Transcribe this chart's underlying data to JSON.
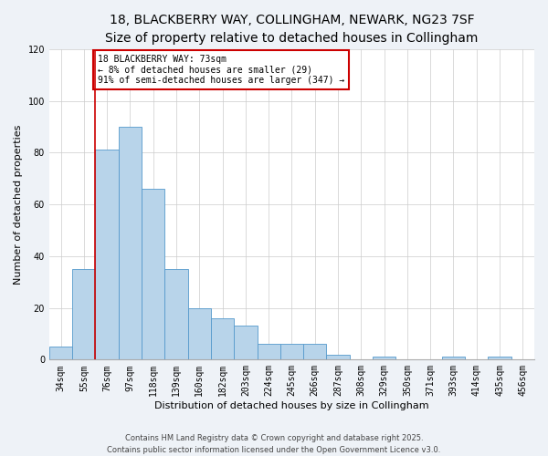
{
  "title": "18, BLACKBERRY WAY, COLLINGHAM, NEWARK, NG23 7SF",
  "subtitle": "Size of property relative to detached houses in Collingham",
  "xlabel": "Distribution of detached houses by size in Collingham",
  "ylabel": "Number of detached properties",
  "bar_labels": [
    "34sqm",
    "55sqm",
    "76sqm",
    "97sqm",
    "118sqm",
    "139sqm",
    "160sqm",
    "182sqm",
    "203sqm",
    "224sqm",
    "245sqm",
    "266sqm",
    "287sqm",
    "308sqm",
    "329sqm",
    "350sqm",
    "371sqm",
    "393sqm",
    "414sqm",
    "435sqm",
    "456sqm"
  ],
  "bar_values": [
    5,
    35,
    81,
    90,
    66,
    35,
    20,
    16,
    13,
    6,
    6,
    6,
    2,
    0,
    1,
    0,
    0,
    1,
    0,
    1,
    0
  ],
  "bar_color": "#b8d4ea",
  "bar_edge_color": "#5599cc",
  "vline_x": 1.5,
  "vline_color": "#cc0000",
  "annotation_title": "18 BLACKBERRY WAY: 73sqm",
  "annotation_line1": "← 8% of detached houses are smaller (29)",
  "annotation_line2": "91% of semi-detached houses are larger (347) →",
  "annotation_box_color": "#ffffff",
  "annotation_box_edge": "#cc0000",
  "ylim": [
    0,
    120
  ],
  "yticks": [
    0,
    20,
    40,
    60,
    80,
    100,
    120
  ],
  "footer1": "Contains HM Land Registry data © Crown copyright and database right 2025.",
  "footer2": "Contains public sector information licensed under the Open Government Licence v3.0.",
  "bg_color": "#eef2f7",
  "plot_bg_color": "#ffffff",
  "title_fontsize": 10,
  "axis_label_fontsize": 8,
  "tick_fontsize": 7,
  "footer_fontsize": 6
}
